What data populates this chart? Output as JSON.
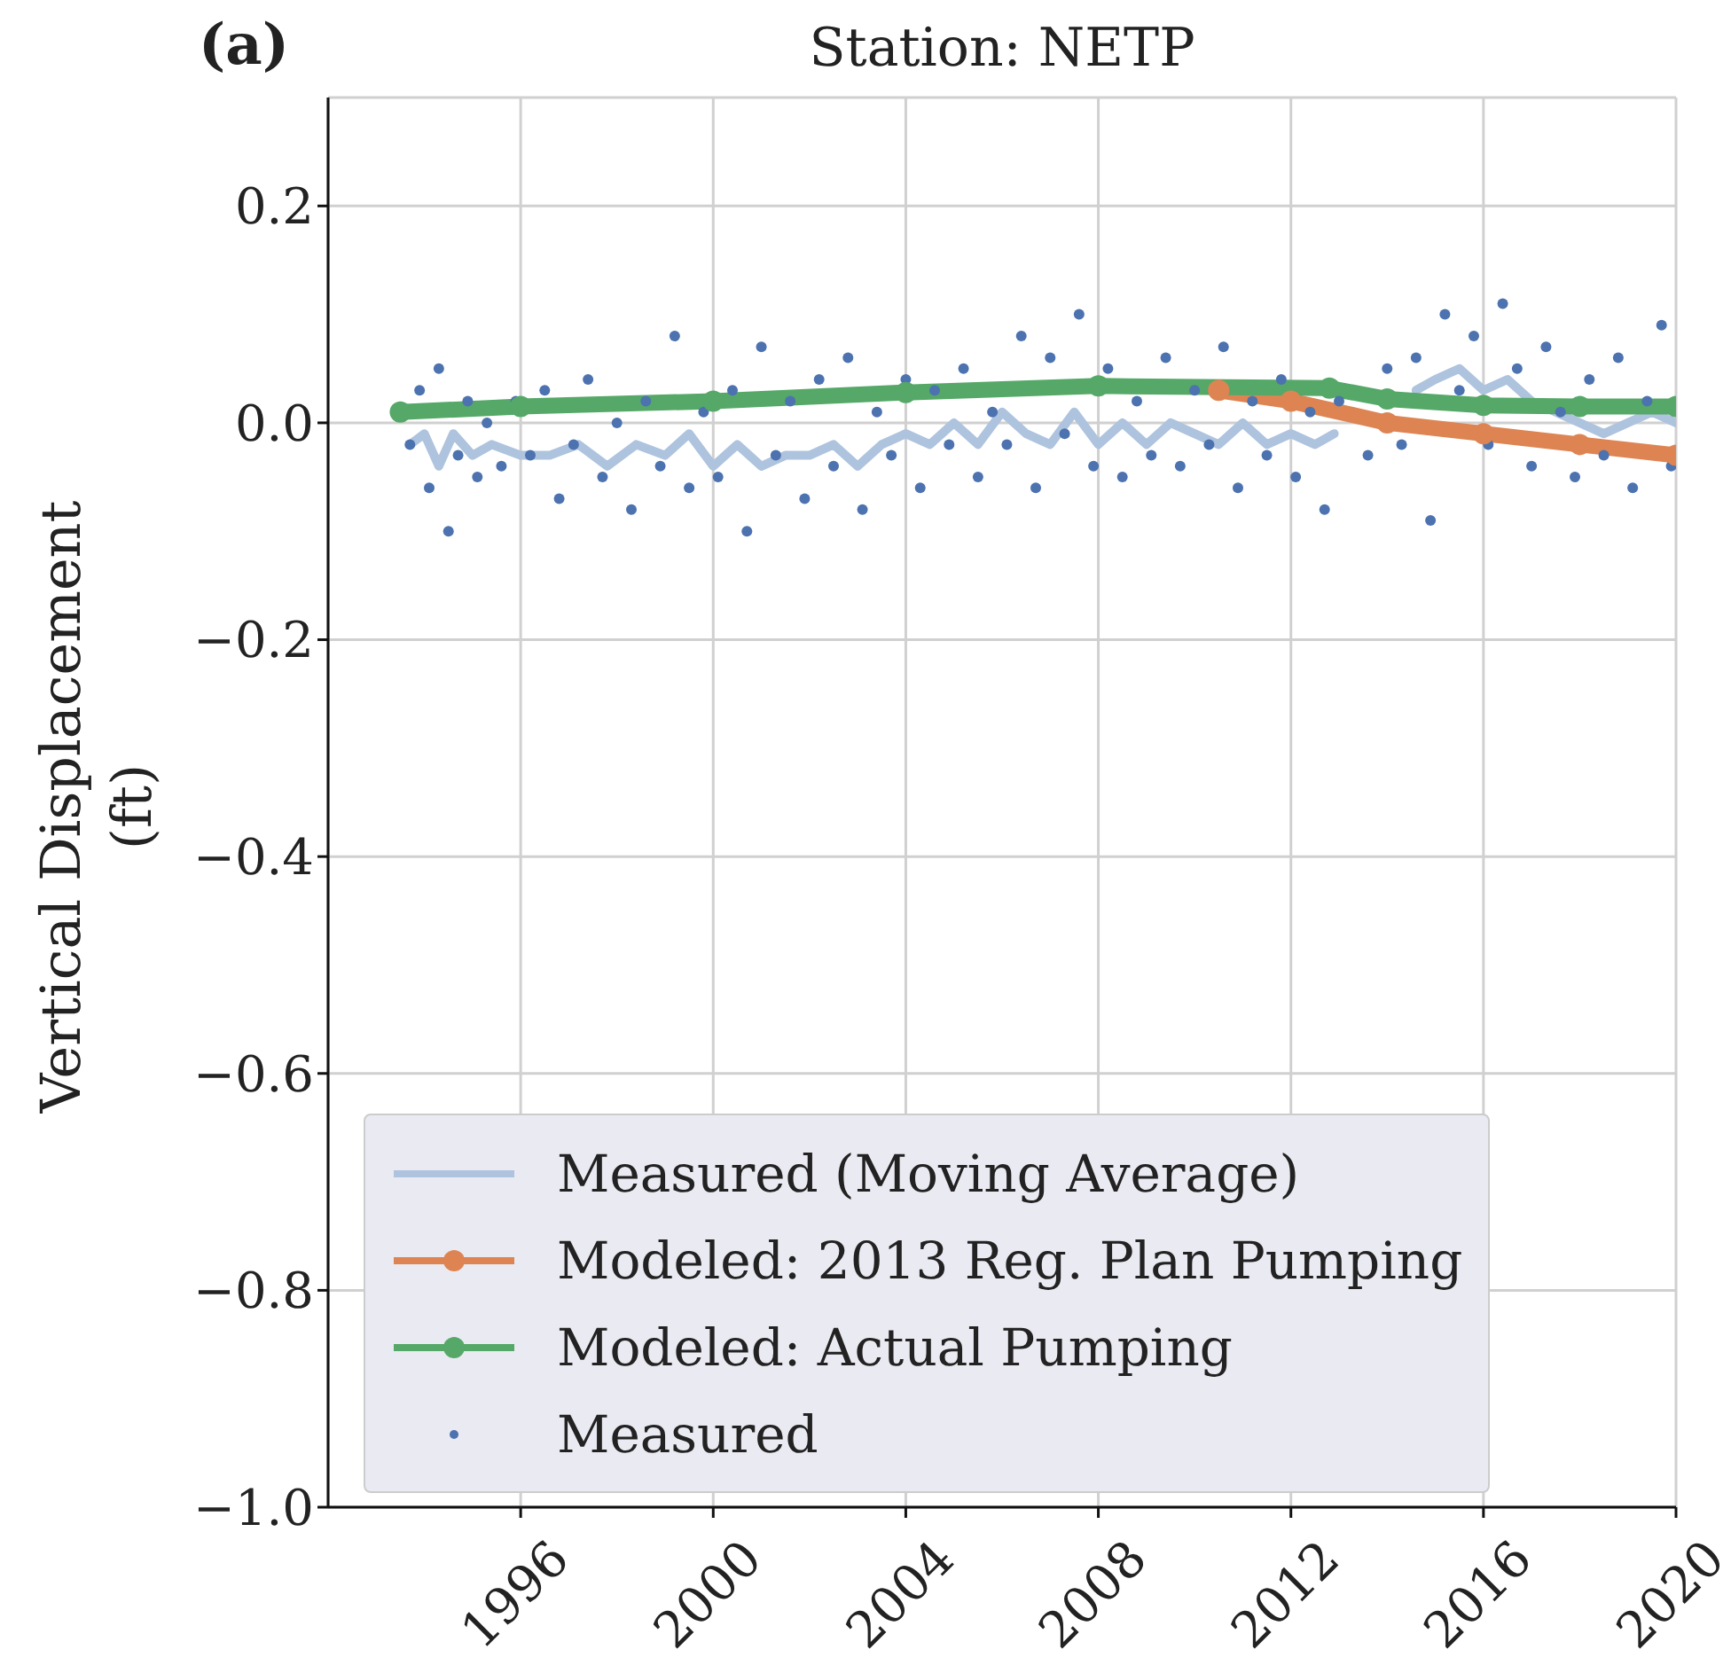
{
  "chart_data": {
    "type": "line",
    "title": "Station: NETP",
    "annotations": [
      "(a)"
    ],
    "ylabel": "Vertical Displacement (ft)",
    "xlim": [
      1992,
      2020
    ],
    "xticks": [
      1996,
      2000,
      2004,
      2008,
      2012,
      2016,
      2020
    ],
    "ylim": [
      -1.0,
      0.3
    ],
    "yticks": [
      {
        "value": -1.0,
        "label": "−1.0"
      },
      {
        "value": -0.8,
        "label": "−0.8"
      },
      {
        "value": -0.6,
        "label": "−0.6"
      },
      {
        "value": -0.4,
        "label": "−0.4"
      },
      {
        "value": -0.2,
        "label": "−0.2"
      },
      {
        "value": 0.0,
        "label": "0.0"
      },
      {
        "value": 0.2,
        "label": "0.2"
      }
    ],
    "grid": true,
    "legend": "bottom left",
    "series": [
      {
        "name": "Measured (Moving Average)",
        "marker": "none",
        "color": "#aec3de",
        "x": [
          1993.7,
          1994.0,
          1994.3,
          1994.6,
          1995.0,
          1995.4,
          1996.0,
          1996.6,
          1997.2,
          1997.8,
          1998.4,
          1999.0,
          1999.5,
          2000.0,
          2000.5,
          2001.0,
          2001.5,
          2002.0,
          2002.5,
          2003.0,
          2003.5,
          2004.0,
          2004.5,
          2005.0,
          2005.5,
          2006.0,
          2006.5,
          2007.0,
          2007.5,
          2008.0,
          2008.5,
          2009.0,
          2009.5,
          2010.0,
          2010.5,
          2011.0,
          2011.5,
          2012.0,
          2012.5,
          2012.9,
          2013.2,
          2014.6,
          2015.0,
          2015.5,
          2016.0,
          2016.5,
          2017.0,
          2017.5,
          2018.0,
          2018.5,
          2019.0,
          2019.5,
          2020.0
        ],
        "values": [
          -0.02,
          -0.01,
          -0.04,
          -0.01,
          -0.03,
          -0.02,
          -0.03,
          -0.03,
          -0.02,
          -0.04,
          -0.02,
          -0.03,
          -0.01,
          -0.04,
          -0.02,
          -0.04,
          -0.03,
          -0.03,
          -0.02,
          -0.04,
          -0.02,
          -0.01,
          -0.02,
          0.0,
          -0.02,
          0.01,
          -0.01,
          -0.02,
          0.01,
          -0.02,
          0.0,
          -0.02,
          0.0,
          -0.01,
          -0.02,
          0.0,
          -0.02,
          -0.01,
          -0.02,
          -0.01,
          null,
          0.03,
          0.04,
          0.05,
          0.03,
          0.04,
          0.02,
          0.01,
          0.0,
          -0.01,
          0.0,
          0.01,
          0.0
        ]
      },
      {
        "name": "Modeled: 2013 Reg. Plan Pumping",
        "marker": "circle",
        "color": "#dd8452",
        "x": [
          2010.5,
          2012,
          2014,
          2016,
          2018,
          2020
        ],
        "values": [
          0.03,
          0.02,
          0.0,
          -0.01,
          -0.02,
          -0.03
        ]
      },
      {
        "name": "Modeled: Actual Pumping",
        "marker": "circle",
        "color": "#55a868",
        "x": [
          1993.5,
          1996,
          2000,
          2004,
          2008,
          2012.8,
          2014,
          2016,
          2018,
          2020
        ],
        "values": [
          0.01,
          0.015,
          0.02,
          0.028,
          0.034,
          0.032,
          0.022,
          0.016,
          0.015,
          0.015
        ]
      },
      {
        "name": "Measured",
        "type": "scatter",
        "marker": "circle",
        "color": "#4c72b0",
        "x": [
          1993.7,
          1993.9,
          1994.1,
          1994.3,
          1994.5,
          1994.7,
          1994.9,
          1995.1,
          1995.3,
          1995.6,
          1995.9,
          1996.2,
          1996.5,
          1996.8,
          1997.1,
          1997.4,
          1997.7,
          1998.0,
          1998.3,
          1998.6,
          1998.9,
          1999.2,
          1999.5,
          1999.8,
          2000.1,
          2000.4,
          2000.7,
          2001.0,
          2001.3,
          2001.6,
          2001.9,
          2002.2,
          2002.5,
          2002.8,
          2003.1,
          2003.4,
          2003.7,
          2004.0,
          2004.3,
          2004.6,
          2004.9,
          2005.2,
          2005.5,
          2005.8,
          2006.1,
          2006.4,
          2006.7,
          2007.0,
          2007.3,
          2007.6,
          2007.9,
          2008.2,
          2008.5,
          2008.8,
          2009.1,
          2009.4,
          2009.7,
          2010.0,
          2010.3,
          2010.6,
          2010.9,
          2011.2,
          2011.5,
          2011.8,
          2012.1,
          2012.4,
          2012.7,
          2013.0,
          2013.6,
          2014.0,
          2014.3,
          2014.6,
          2014.9,
          2015.2,
          2015.5,
          2015.8,
          2016.1,
          2016.4,
          2016.7,
          2017.0,
          2017.3,
          2017.6,
          2017.9,
          2018.2,
          2018.5,
          2018.8,
          2019.1,
          2019.4,
          2019.7,
          2019.9
        ],
        "values": [
          -0.02,
          0.03,
          -0.06,
          0.05,
          -0.1,
          -0.03,
          0.02,
          -0.05,
          0.0,
          -0.04,
          0.02,
          -0.03,
          0.03,
          -0.07,
          -0.02,
          0.04,
          -0.05,
          0.0,
          -0.08,
          0.02,
          -0.04,
          0.08,
          -0.06,
          0.01,
          -0.05,
          0.03,
          -0.1,
          0.07,
          -0.03,
          0.02,
          -0.07,
          0.04,
          -0.04,
          0.06,
          -0.08,
          0.01,
          -0.03,
          0.04,
          -0.06,
          0.03,
          -0.02,
          0.05,
          -0.05,
          0.01,
          -0.02,
          0.08,
          -0.06,
          0.06,
          -0.01,
          0.1,
          -0.04,
          0.05,
          -0.05,
          0.02,
          -0.03,
          0.06,
          -0.04,
          0.03,
          -0.02,
          0.07,
          -0.06,
          0.02,
          -0.03,
          0.04,
          -0.05,
          0.01,
          -0.08,
          0.02,
          -0.03,
          0.05,
          -0.02,
          0.06,
          -0.09,
          0.1,
          0.03,
          0.08,
          -0.02,
          0.11,
          0.05,
          -0.04,
          0.07,
          0.01,
          -0.05,
          0.04,
          -0.03,
          0.06,
          -0.06,
          0.02,
          0.09,
          -0.04
        ]
      }
    ]
  }
}
